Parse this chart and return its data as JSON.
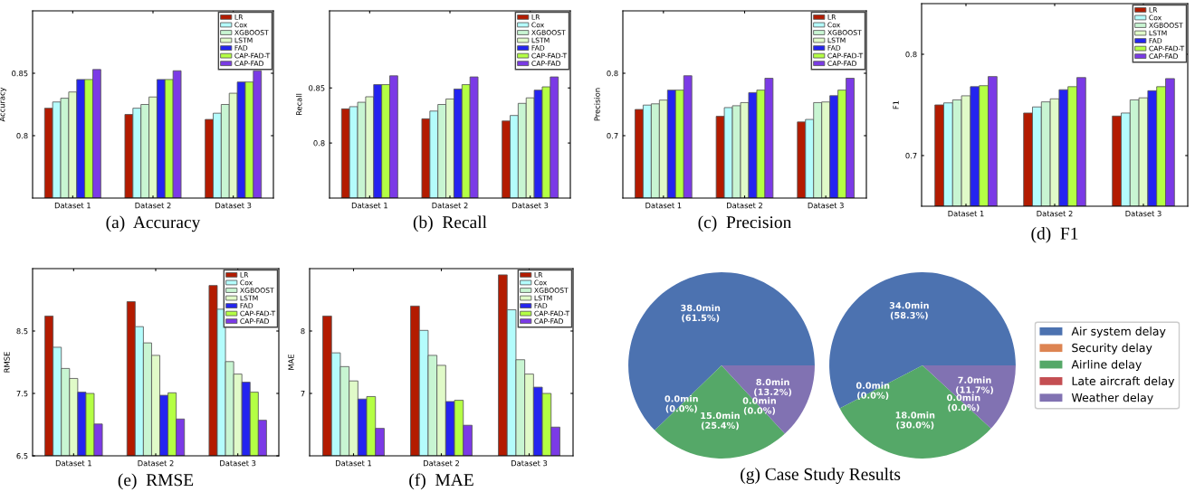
{
  "chart_data": [
    {
      "type": "bar",
      "title": "(a)  Accuracy",
      "ylabel": "Accuracy",
      "categories": [
        "Dataset 1",
        "Dataset 2",
        "Dataset 3"
      ],
      "ylim": [
        0.75,
        0.9
      ],
      "yticks": [
        0.8,
        0.85
      ],
      "legend": "top right",
      "series": [
        {
          "name": "LR",
          "color": "#b31b00",
          "values": [
            0.822,
            0.817,
            0.813
          ]
        },
        {
          "name": "Cox",
          "color": "#b4fcfc",
          "values": [
            0.827,
            0.822,
            0.818
          ]
        },
        {
          "name": "XGBOOST",
          "color": "#c8f5d2",
          "values": [
            0.83,
            0.825,
            0.825
          ]
        },
        {
          "name": "LSTM",
          "color": "#e0fac8",
          "values": [
            0.835,
            0.831,
            0.834
          ]
        },
        {
          "name": "FAD",
          "color": "#2424f0",
          "values": [
            0.845,
            0.845,
            0.843
          ]
        },
        {
          "name": "CAP-FAD-T",
          "color": "#b4ff44",
          "values": [
            0.845,
            0.845,
            0.843
          ]
        },
        {
          "name": "CAP-FAD",
          "color": "#7b3ae6",
          "values": [
            0.853,
            0.852,
            0.852
          ]
        }
      ]
    },
    {
      "type": "bar",
      "title": "(b)  Recall",
      "ylabel": "Recall",
      "categories": [
        "Dataset 1",
        "Dataset 2",
        "Dataset 3"
      ],
      "ylim": [
        0.75,
        0.92
      ],
      "yticks": [
        0.8,
        0.85
      ],
      "legend": "top right",
      "series": [
        {
          "name": "LR",
          "color": "#b31b00",
          "values": [
            0.831,
            0.822,
            0.82
          ]
        },
        {
          "name": "Cox",
          "color": "#b4fcfc",
          "values": [
            0.833,
            0.829,
            0.825
          ]
        },
        {
          "name": "XGBOOST",
          "color": "#c8f5d2",
          "values": [
            0.837,
            0.835,
            0.836
          ]
        },
        {
          "name": "LSTM",
          "color": "#e0fac8",
          "values": [
            0.842,
            0.84,
            0.841
          ]
        },
        {
          "name": "FAD",
          "color": "#2424f0",
          "values": [
            0.853,
            0.849,
            0.848
          ]
        },
        {
          "name": "CAP-FAD-T",
          "color": "#b4ff44",
          "values": [
            0.853,
            0.853,
            0.851
          ]
        },
        {
          "name": "CAP-FAD",
          "color": "#7b3ae6",
          "values": [
            0.861,
            0.86,
            0.86
          ]
        }
      ]
    },
    {
      "type": "bar",
      "title": "(c)  Precision",
      "ylabel": "Precision",
      "categories": [
        "Dataset 1",
        "Dataset 2",
        "Dataset 3"
      ],
      "ylim": [
        0.6,
        0.9
      ],
      "yticks": [
        0.7,
        0.8
      ],
      "legend": "top right",
      "series": [
        {
          "name": "LR",
          "color": "#b31b00",
          "values": [
            0.742,
            0.731,
            0.722
          ]
        },
        {
          "name": "Cox",
          "color": "#b4fcfc",
          "values": [
            0.749,
            0.745,
            0.726
          ]
        },
        {
          "name": "XGBOOST",
          "color": "#c8f5d2",
          "values": [
            0.751,
            0.748,
            0.753
          ]
        },
        {
          "name": "LSTM",
          "color": "#e0fac8",
          "values": [
            0.757,
            0.753,
            0.754
          ]
        },
        {
          "name": "FAD",
          "color": "#2424f0",
          "values": [
            0.773,
            0.769,
            0.764
          ]
        },
        {
          "name": "CAP-FAD-T",
          "color": "#b4ff44",
          "values": [
            0.773,
            0.773,
            0.773
          ]
        },
        {
          "name": "CAP-FAD",
          "color": "#7b3ae6",
          "values": [
            0.796,
            0.792,
            0.792
          ]
        }
      ]
    },
    {
      "type": "bar",
      "title": "(d)  F1",
      "ylabel": "F1",
      "categories": [
        "Dataset 1",
        "Dataset 2",
        "Dataset 3"
      ],
      "ylim": [
        0.65,
        0.85
      ],
      "yticks": [
        0.7,
        0.8
      ],
      "legend": "top right",
      "series": [
        {
          "name": "LR",
          "color": "#b31b00",
          "values": [
            0.75,
            0.742,
            0.739
          ]
        },
        {
          "name": "Cox",
          "color": "#b4fcfc",
          "values": [
            0.752,
            0.748,
            0.742
          ]
        },
        {
          "name": "XGBOOST",
          "color": "#c8f5d2",
          "values": [
            0.755,
            0.753,
            0.755
          ]
        },
        {
          "name": "LSTM",
          "color": "#e0fac8",
          "values": [
            0.759,
            0.756,
            0.757
          ]
        },
        {
          "name": "FAD",
          "color": "#2424f0",
          "values": [
            0.768,
            0.765,
            0.764
          ]
        },
        {
          "name": "CAP-FAD-T",
          "color": "#b4ff44",
          "values": [
            0.769,
            0.768,
            0.768
          ]
        },
        {
          "name": "CAP-FAD",
          "color": "#7b3ae6",
          "values": [
            0.778,
            0.777,
            0.776
          ]
        }
      ]
    },
    {
      "type": "bar",
      "title": "(e)  RMSE",
      "ylabel": "RMSE",
      "categories": [
        "Dataset 1",
        "Dataset 2",
        "Dataset 3"
      ],
      "ylim": [
        6.5,
        9.5
      ],
      "yticks": [
        6.5,
        7.5,
        8.5
      ],
      "legend": "top right",
      "series": [
        {
          "name": "LR",
          "color": "#b31b00",
          "values": [
            8.74,
            8.97,
            9.23
          ]
        },
        {
          "name": "Cox",
          "color": "#b4fcfc",
          "values": [
            8.24,
            8.57,
            8.85
          ]
        },
        {
          "name": "XGBOOST",
          "color": "#c8f5d2",
          "values": [
            7.9,
            8.31,
            8.01
          ]
        },
        {
          "name": "LSTM",
          "color": "#e0fac8",
          "values": [
            7.74,
            8.11,
            7.81
          ]
        },
        {
          "name": "FAD",
          "color": "#2424f0",
          "values": [
            7.52,
            7.47,
            7.68
          ]
        },
        {
          "name": "CAP-FAD-T",
          "color": "#b4ff44",
          "values": [
            7.5,
            7.51,
            7.52
          ]
        },
        {
          "name": "CAP-FAD",
          "color": "#7b3ae6",
          "values": [
            7.01,
            7.09,
            7.07
          ]
        }
      ]
    },
    {
      "type": "bar",
      "title": "(f)  MAE",
      "ylabel": "MAE",
      "categories": [
        "Dataset 1",
        "Dataset 2",
        "Dataset 3"
      ],
      "ylim": [
        6.0,
        9.0
      ],
      "yticks": [
        7,
        8
      ],
      "legend": "top right",
      "series": [
        {
          "name": "LR",
          "color": "#b31b00",
          "values": [
            8.24,
            8.4,
            8.9
          ]
        },
        {
          "name": "Cox",
          "color": "#b4fcfc",
          "values": [
            7.65,
            8.01,
            8.34
          ]
        },
        {
          "name": "XGBOOST",
          "color": "#c8f5d2",
          "values": [
            7.43,
            7.61,
            7.54
          ]
        },
        {
          "name": "LSTM",
          "color": "#e0fac8",
          "values": [
            7.2,
            7.45,
            7.31
          ]
        },
        {
          "name": "FAD",
          "color": "#2424f0",
          "values": [
            6.91,
            6.87,
            7.1
          ]
        },
        {
          "name": "CAP-FAD-T",
          "color": "#b4ff44",
          "values": [
            6.95,
            6.89,
            7.0
          ]
        },
        {
          "name": "CAP-FAD",
          "color": "#7b3ae6",
          "values": [
            6.44,
            6.49,
            6.46
          ]
        }
      ]
    },
    {
      "type": "pie",
      "title": "(g) Case Study Results",
      "categories": [
        "Air system delay",
        "Security delay",
        "Airline delay",
        "Late aircraft delay",
        "Weather delay"
      ],
      "values": [
        38.0,
        0.0,
        15.0,
        0.0,
        8.0
      ],
      "colors": [
        "#4c72b0",
        "#dd8452",
        "#55a868",
        "#c44e52",
        "#8172b2"
      ],
      "legend": "right",
      "value_labels": [
        "38.0min\n(61.5%)",
        "0.0min\n(0.0%)",
        "15.0min\n(25.4%)",
        "0.0min\n(0.0%)",
        "8.0min\n(13.2%)"
      ]
    },
    {
      "type": "pie",
      "categories": [
        null,
        null,
        null,
        null,
        null
      ],
      "values": [
        34.0,
        0.0,
        18.0,
        0.0,
        7.0
      ],
      "colors": [
        "#4c72b0",
        "#dd8452",
        "#55a868",
        "#c44e52",
        "#8172b2"
      ],
      "value_labels": [
        "34.0min\n(58.3%)",
        "0.0min\n(0.0%)",
        "18.0min\n(30.0%)",
        "0.0min\n(0.0%)",
        "7.0min\n(11.7%)"
      ]
    }
  ]
}
